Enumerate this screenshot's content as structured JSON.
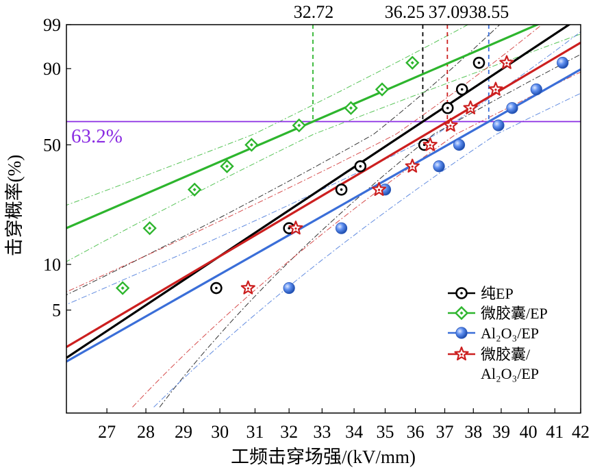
{
  "chart_data": {
    "type": "scatter",
    "title": "",
    "xlabel": "工频击穿场强/(kV/mm)",
    "ylabel": "击穿概率(%)",
    "x_scale": "log",
    "y_scale": "weibull",
    "xlim": [
      26,
      42
    ],
    "ylim": [
      1.6,
      99
    ],
    "x_ticks": [
      27,
      28,
      29,
      30,
      31,
      32,
      33,
      34,
      35,
      36,
      37,
      38,
      39,
      40,
      41,
      42
    ],
    "y_ticks": [
      5,
      10,
      50,
      90,
      99
    ],
    "grid": false,
    "legend_position": "bottom-right",
    "reference_line": {
      "y": 63.2,
      "label": "63.2%",
      "color": "#8a2be2"
    },
    "series": [
      {
        "name": "纯EP",
        "color": "#000000",
        "marker": "circle-dot",
        "scale": 36.25,
        "shape": 11.2,
        "x": [
          29.9,
          32.0,
          33.6,
          34.2,
          36.3,
          37.1,
          37.6,
          38.2
        ],
        "y": [
          7,
          17,
          29,
          39,
          50,
          71,
          81,
          92
        ]
      },
      {
        "name": "微胶囊/EP",
        "color": "#2db52d",
        "marker": "diamond",
        "scale": 32.72,
        "shape": 7.3,
        "x": [
          27.4,
          28.1,
          29.3,
          30.2,
          30.9,
          32.3,
          33.9,
          34.9,
          35.9
        ],
        "y": [
          7,
          17,
          29,
          39,
          50,
          61,
          71,
          81,
          92
        ]
      },
      {
        "name": "Al2O3/EP",
        "color": "#3a6ed8",
        "marker": "ball",
        "scale": 38.55,
        "shape": 9.6,
        "x": [
          32.0,
          33.6,
          35.0,
          36.8,
          37.5,
          38.9,
          39.4,
          40.3,
          41.3
        ],
        "y": [
          7,
          17,
          29,
          39,
          50,
          61,
          71,
          81,
          92
        ]
      },
      {
        "name": "微胶囊/Al2O3/EP",
        "color": "#cc1f1f",
        "marker": "star",
        "scale": 37.09,
        "shape": 10.0,
        "x": [
          30.8,
          32.2,
          34.8,
          35.9,
          36.5,
          37.2,
          37.9,
          38.8,
          39.2
        ],
        "y": [
          7,
          17,
          29,
          39,
          50,
          61,
          71,
          81,
          92
        ]
      }
    ],
    "legend": [
      {
        "line1": "纯EP",
        "line2": ""
      },
      {
        "line1": "微胶囊/EP",
        "line2": ""
      },
      {
        "line1": "Al₂O₃/EP",
        "line2": ""
      },
      {
        "line1": "微胶囊/",
        "line2": "Al₂O₃/EP"
      }
    ],
    "scale_labels": [
      "32.72",
      "36.25",
      "37.09",
      "38.55"
    ]
  }
}
